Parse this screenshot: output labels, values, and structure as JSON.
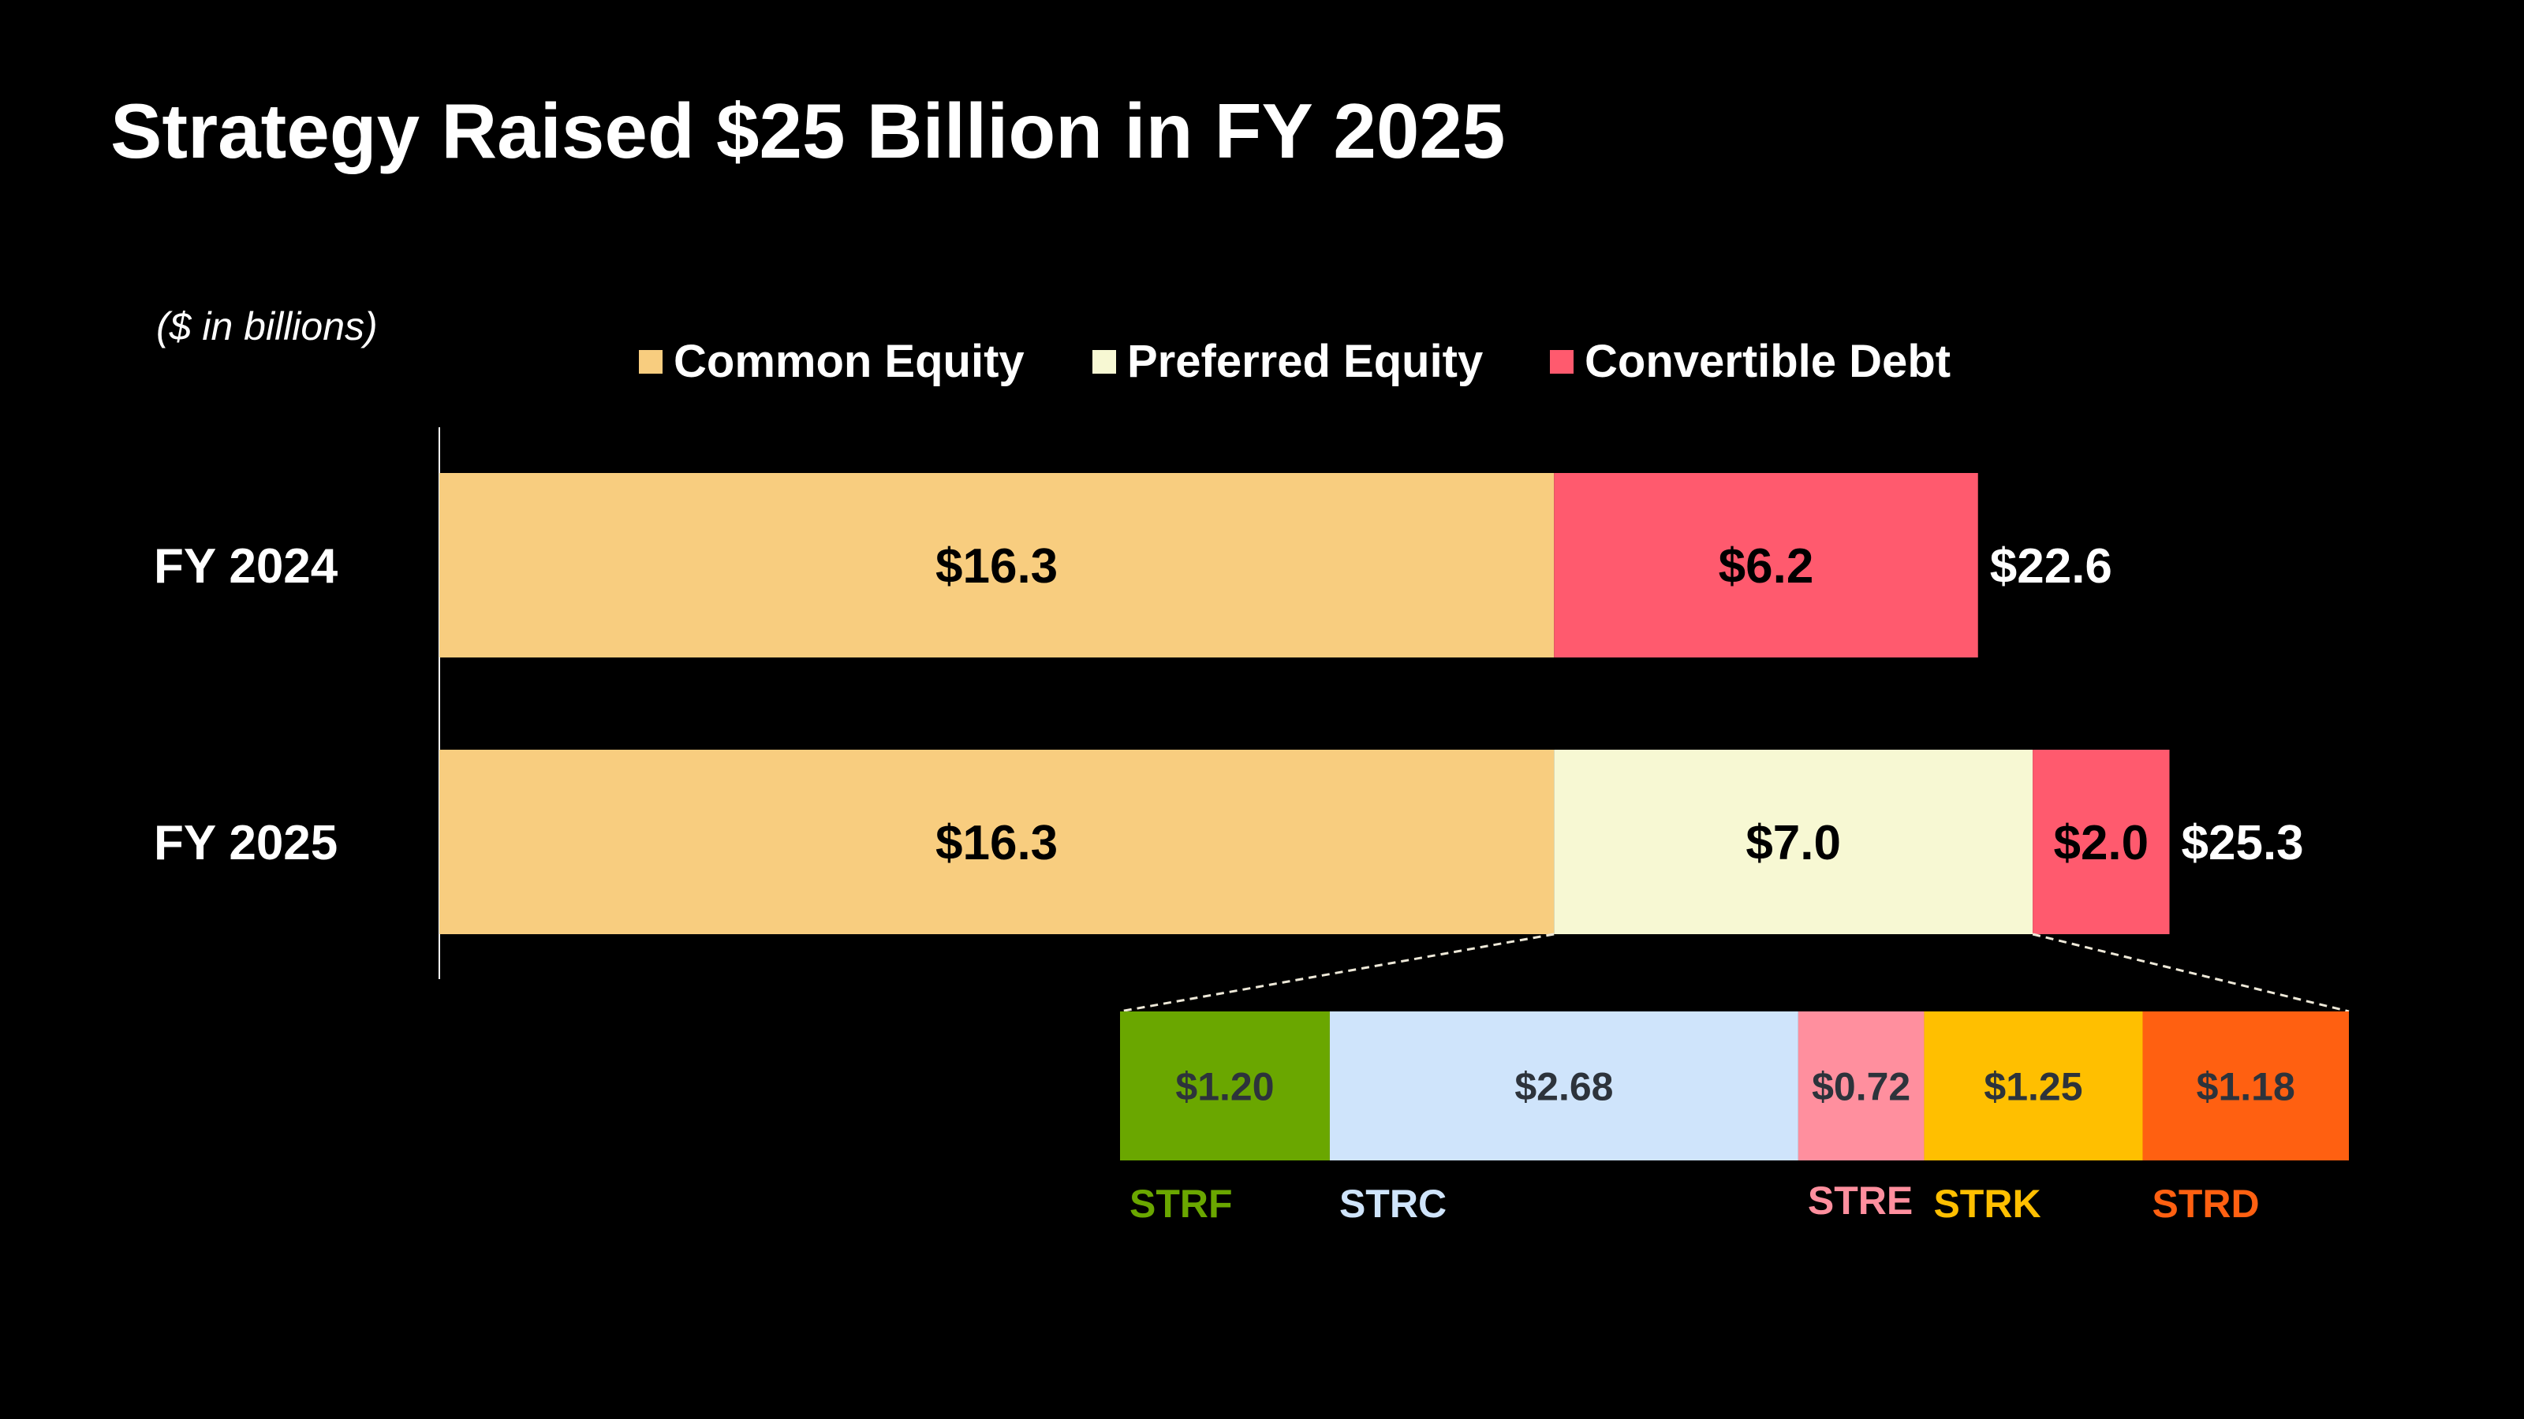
{
  "title": "Strategy Raised $25 Billion in FY 2025",
  "unit_note": "($ in billions)",
  "colors": {
    "common": "#F8CD7F",
    "preferred": "#F7F8D3",
    "debt": "#FF5A6E",
    "breakdown_text": "#2D333B",
    "connector": "#EDE8D8"
  },
  "chart_data": {
    "type": "bar",
    "orientation": "horizontal",
    "stacked": true,
    "categories": [
      "FY 2024",
      "FY 2025"
    ],
    "series": [
      {
        "name": "Common Equity",
        "values": [
          16.3,
          16.3
        ],
        "labels": [
          "$16.3",
          "$16.3"
        ],
        "color": "#F8CD7F"
      },
      {
        "name": "Preferred Equity",
        "values": [
          0,
          7.0
        ],
        "labels": [
          "",
          "$7.0"
        ],
        "color": "#F7F8D3"
      },
      {
        "name": "Convertible Debt",
        "values": [
          6.2,
          2.0
        ],
        "labels": [
          "$6.2",
          "$2.0"
        ],
        "color": "#FF5A6E"
      }
    ],
    "totals": [
      "$22.6",
      "$25.3"
    ],
    "legend_position": "top",
    "grid": false,
    "breakdown": {
      "of": "Preferred Equity FY 2025",
      "items": [
        {
          "name": "STRF",
          "value": 1.2,
          "label": "$1.20",
          "color": "#6AA700"
        },
        {
          "name": "STRC",
          "value": 2.68,
          "label": "$2.68",
          "color": "#CFE4FB"
        },
        {
          "name": "STRE",
          "value": 0.72,
          "label": "$0.72",
          "color": "#FF8F9E"
        },
        {
          "name": "STRK",
          "value": 1.25,
          "label": "$1.25",
          "color": "#FFBF00"
        },
        {
          "name": "STRD",
          "value": 1.18,
          "label": "$1.18",
          "color": "#FF6011"
        }
      ]
    }
  }
}
